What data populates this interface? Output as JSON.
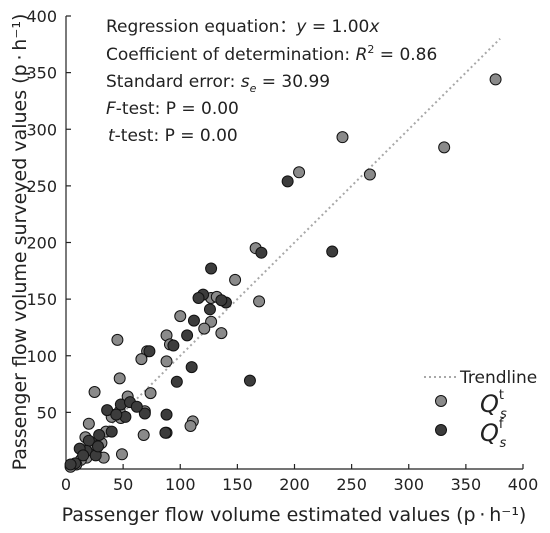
{
  "chart_data": {
    "type": "scatter",
    "title": "",
    "xlabel": "Passenger flow volume estimated values (p · h⁻¹)",
    "ylabel": "Passenger flow volume surveyed values (p · h⁻¹)",
    "xlim": [
      0,
      400
    ],
    "ylim": [
      0,
      400
    ],
    "x_ticks": [
      "0",
      "50",
      "100",
      "150",
      "200",
      "250",
      "300",
      "350",
      "400"
    ],
    "y_ticks": [
      "50",
      "100",
      "150",
      "200",
      "250",
      "300",
      "350",
      "400"
    ],
    "grid": false,
    "legend_position": "bottom-right",
    "stats": {
      "regression_label": "Regression equation：",
      "regression_y": "y",
      "regression_rest": " = 1.00",
      "regression_x": "x",
      "r2_label": "Coefficient of determination: ",
      "r2_symbol": "R",
      "r2_sup": "2",
      "r2_value": " = 0.86",
      "se_label": "Standard error: ",
      "se_symbol": "s",
      "se_sub": "e",
      "se_value": " = 30.99",
      "f_symbol": "F",
      "f_rest": "-test: P = 0.00",
      "t_symbol": "t",
      "t_rest": "-test: P = 0.00"
    },
    "trendline": {
      "name": "Trendline",
      "slope": 1.0,
      "x_range": [
        0,
        380
      ],
      "color": "#a8a8a8"
    },
    "series": [
      {
        "name": "Q",
        "name_sup": "t",
        "name_sub": "s",
        "color": "#8a8a8a",
        "points": [
          [
            376,
            344
          ],
          [
            331,
            284
          ],
          [
            242,
            293
          ],
          [
            204,
            262
          ],
          [
            266,
            260
          ],
          [
            166,
            195
          ],
          [
            148,
            167
          ],
          [
            169,
            148
          ],
          [
            127,
            151
          ],
          [
            132,
            152
          ],
          [
            100,
            135
          ],
          [
            127,
            130
          ],
          [
            121,
            124
          ],
          [
            136,
            120
          ],
          [
            88,
            118
          ],
          [
            91,
            110
          ],
          [
            71,
            104
          ],
          [
            66,
            97
          ],
          [
            88,
            95
          ],
          [
            74,
            67
          ],
          [
            45,
            114
          ],
          [
            47,
            80
          ],
          [
            111,
            42
          ],
          [
            109,
            38
          ],
          [
            40,
            48
          ],
          [
            54,
            64
          ],
          [
            47,
            51
          ],
          [
            69,
            51
          ],
          [
            25,
            68
          ],
          [
            40,
            46
          ],
          [
            35,
            33
          ],
          [
            26,
            15
          ],
          [
            20,
            40
          ],
          [
            17,
            28
          ],
          [
            31,
            23
          ],
          [
            33,
            10
          ],
          [
            22,
            22
          ],
          [
            18,
            10
          ],
          [
            13,
            8
          ],
          [
            9,
            4
          ],
          [
            4,
            2
          ],
          [
            49,
            13
          ],
          [
            88,
            32
          ],
          [
            68,
            30
          ],
          [
            48,
            45
          ]
        ]
      },
      {
        "name": "Q",
        "name_sup": "f",
        "name_sub": "s",
        "color": "#3c3c3c",
        "points": [
          [
            194,
            254
          ],
          [
            233,
            192
          ],
          [
            171,
            191
          ],
          [
            127,
            177
          ],
          [
            120,
            154
          ],
          [
            140,
            147
          ],
          [
            116,
            151
          ],
          [
            126,
            141
          ],
          [
            112,
            131
          ],
          [
            136,
            149
          ],
          [
            97,
            77
          ],
          [
            73,
            104
          ],
          [
            110,
            90
          ],
          [
            161,
            78
          ],
          [
            48,
            57
          ],
          [
            52,
            46
          ],
          [
            36,
            52
          ],
          [
            44,
            48
          ],
          [
            69,
            49
          ],
          [
            88,
            48
          ],
          [
            87,
            32
          ],
          [
            40,
            33
          ],
          [
            20,
            25
          ],
          [
            18,
            16
          ],
          [
            12,
            18
          ],
          [
            26,
            12
          ],
          [
            8,
            5
          ],
          [
            4,
            4
          ],
          [
            29,
            30
          ],
          [
            56,
            59
          ],
          [
            106,
            118
          ],
          [
            94,
            109
          ],
          [
            15,
            12
          ],
          [
            28,
            20
          ],
          [
            62,
            55
          ]
        ]
      }
    ]
  }
}
